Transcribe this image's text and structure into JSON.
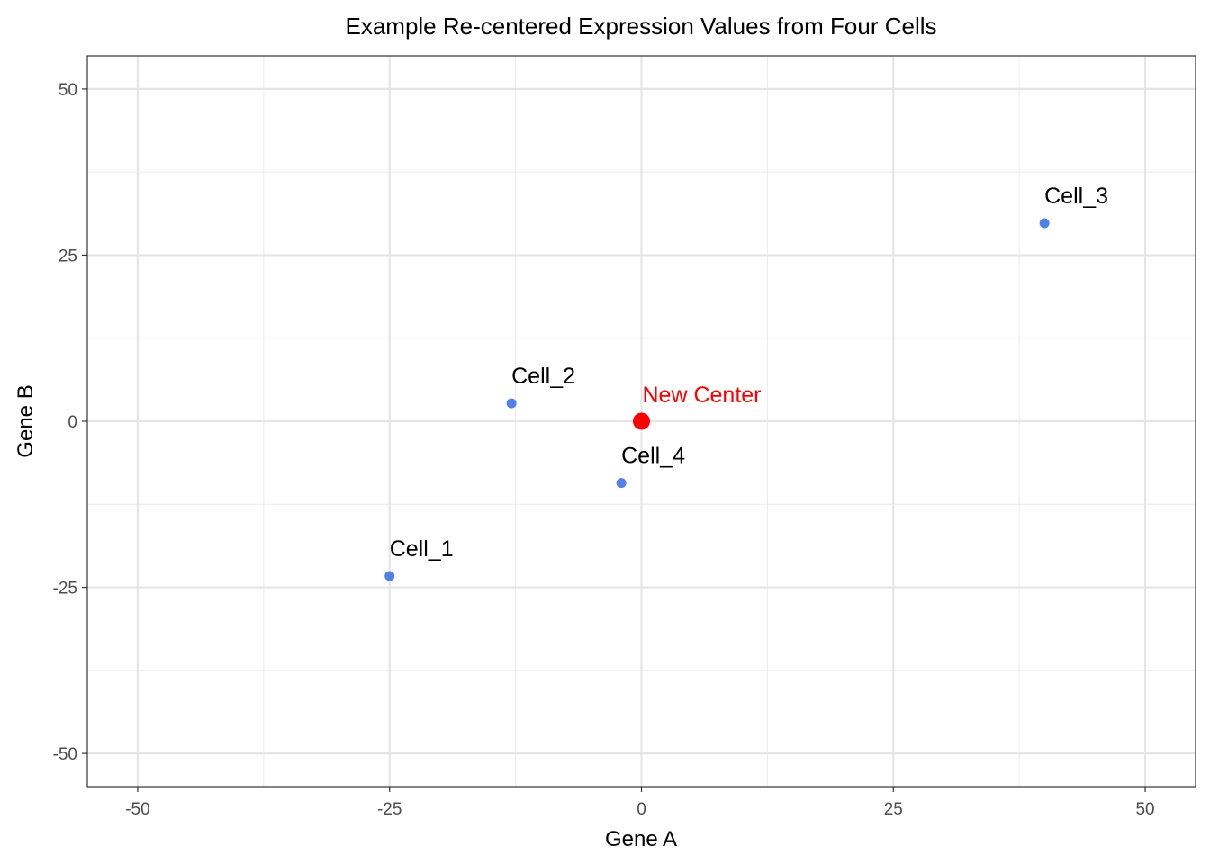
{
  "chart_data": {
    "type": "scatter",
    "title": "Example Re-centered Expression Values from Four Cells",
    "xlabel": "Gene A",
    "ylabel": "Gene B",
    "xlim": [
      -55,
      55
    ],
    "ylim": [
      -55,
      55
    ],
    "xticks": [
      -50,
      -25,
      0,
      25,
      50
    ],
    "yticks": [
      -50,
      -25,
      0,
      25,
      50
    ],
    "xtick_labels": [
      "-50",
      "-25",
      "0",
      "25",
      "50"
    ],
    "ytick_labels": [
      "-50",
      "-25",
      "0",
      "25",
      "50"
    ],
    "grid": true,
    "points": [
      {
        "label": "Cell_1",
        "x": -25,
        "y": -23.3,
        "color": "#4F81E8"
      },
      {
        "label": "Cell_2",
        "x": -12.9,
        "y": 2.7,
        "color": "#4F81E8"
      },
      {
        "label": "Cell_3",
        "x": 40,
        "y": 29.8,
        "color": "#4F81E8"
      },
      {
        "label": "Cell_4",
        "x": -2,
        "y": -9.3,
        "color": "#4F81E8"
      }
    ],
    "center": {
      "label": "New Center",
      "x": 0,
      "y": 0,
      "color": "#FF0000"
    }
  }
}
